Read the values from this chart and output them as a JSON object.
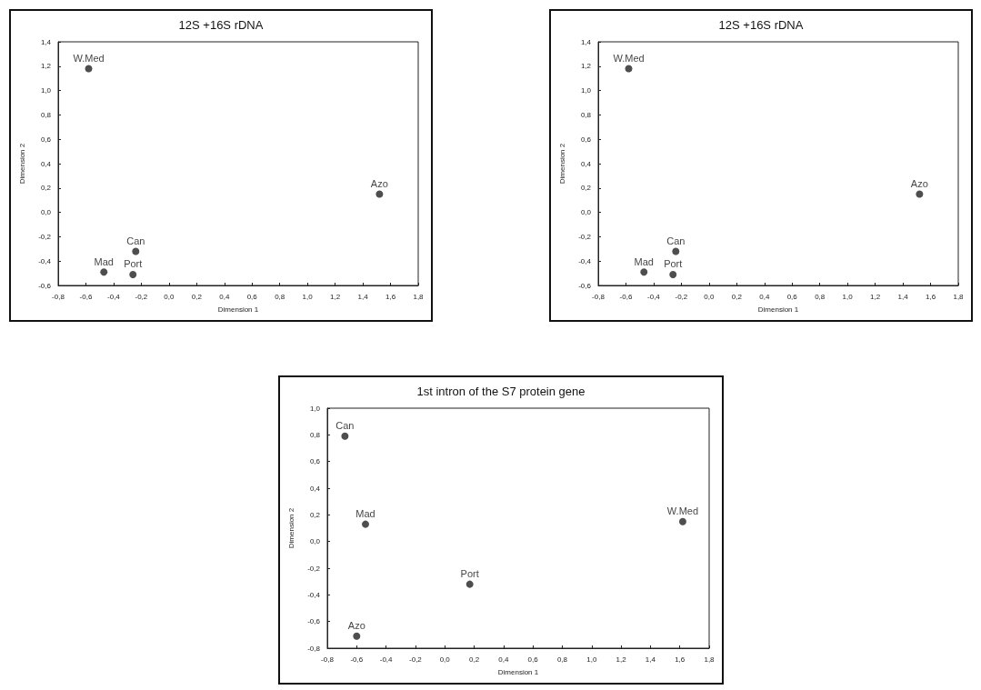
{
  "chart_data": [
    {
      "type": "scatter",
      "title": "12S +16S rDNA",
      "xlabel": "Dimension 1",
      "ylabel": "Dimension 2",
      "marker": "circle",
      "legend": false,
      "grid": false,
      "xlim": [
        -0.8,
        1.8
      ],
      "xticks": [
        {
          "value": -0.8,
          "label": "-0,8"
        },
        {
          "value": -0.6,
          "label": "-0,6"
        },
        {
          "value": -0.4,
          "label": "-0,4"
        },
        {
          "value": -0.2,
          "label": "-0,2"
        },
        {
          "value": 0,
          "label": "0,0"
        },
        {
          "value": 0.2,
          "label": "0,2"
        },
        {
          "value": 0.4,
          "label": "0,4"
        },
        {
          "value": 0.6,
          "label": "0,6"
        },
        {
          "value": 0.8,
          "label": "0,8"
        },
        {
          "value": 1,
          "label": "1,0"
        },
        {
          "value": 1.2,
          "label": "1,2"
        },
        {
          "value": 1.4,
          "label": "1,4"
        },
        {
          "value": 1.6,
          "label": "1,6"
        },
        {
          "value": 1.8,
          "label": "1,8"
        }
      ],
      "ylim": [
        -0.6,
        1.4
      ],
      "yticks": [
        {
          "value": -0.6,
          "label": "-0,6"
        },
        {
          "value": -0.4,
          "label": "-0,4"
        },
        {
          "value": -0.2,
          "label": "-0,2"
        },
        {
          "value": 0,
          "label": "0,0"
        },
        {
          "value": 0.2,
          "label": "0,2"
        },
        {
          "value": 0.4,
          "label": "0,4"
        },
        {
          "value": 0.6,
          "label": "0,6"
        },
        {
          "value": 0.8,
          "label": "0,8"
        },
        {
          "value": 1,
          "label": "1,0"
        },
        {
          "value": 1.2,
          "label": "1,2"
        },
        {
          "value": 1.4,
          "label": "1,4"
        }
      ],
      "series": [
        {
          "name": "W.Med",
          "color": "#222222",
          "x": [
            -0.58
          ],
          "values": [
            1.18
          ]
        },
        {
          "name": "Azo",
          "color": "#222222",
          "x": [
            1.52
          ],
          "values": [
            0.15
          ]
        },
        {
          "name": "Can",
          "color": "#222222",
          "x": [
            -0.24
          ],
          "values": [
            -0.32
          ]
        },
        {
          "name": "Mad",
          "color": "#222222",
          "x": [
            -0.47
          ],
          "values": [
            -0.49
          ]
        },
        {
          "name": "Port",
          "color": "#222222",
          "x": [
            -0.26
          ],
          "values": [
            -0.51
          ]
        }
      ]
    },
    {
      "type": "scatter",
      "title": "12S +16S rDNA",
      "xlabel": "Dimension 1",
      "ylabel": "Dimension 2",
      "marker": "circle",
      "legend": false,
      "grid": false,
      "xlim": [
        -0.8,
        1.8
      ],
      "xticks": [
        {
          "value": -0.8,
          "label": "-0,8"
        },
        {
          "value": -0.6,
          "label": "-0,6"
        },
        {
          "value": -0.4,
          "label": "-0,4"
        },
        {
          "value": -0.2,
          "label": "-0,2"
        },
        {
          "value": 0,
          "label": "0,0"
        },
        {
          "value": 0.2,
          "label": "0,2"
        },
        {
          "value": 0.4,
          "label": "0,4"
        },
        {
          "value": 0.6,
          "label": "0,6"
        },
        {
          "value": 0.8,
          "label": "0,8"
        },
        {
          "value": 1,
          "label": "1,0"
        },
        {
          "value": 1.2,
          "label": "1,2"
        },
        {
          "value": 1.4,
          "label": "1,4"
        },
        {
          "value": 1.6,
          "label": "1,6"
        },
        {
          "value": 1.8,
          "label": "1,8"
        }
      ],
      "ylim": [
        -0.6,
        1.4
      ],
      "yticks": [
        {
          "value": -0.6,
          "label": "-0,6"
        },
        {
          "value": -0.4,
          "label": "-0,4"
        },
        {
          "value": -0.2,
          "label": "-0,2"
        },
        {
          "value": 0,
          "label": "0,0"
        },
        {
          "value": 0.2,
          "label": "0,2"
        },
        {
          "value": 0.4,
          "label": "0,4"
        },
        {
          "value": 0.6,
          "label": "0,6"
        },
        {
          "value": 0.8,
          "label": "0,8"
        },
        {
          "value": 1,
          "label": "1,0"
        },
        {
          "value": 1.2,
          "label": "1,2"
        },
        {
          "value": 1.4,
          "label": "1,4"
        }
      ],
      "series": [
        {
          "name": "W.Med",
          "color": "#222222",
          "x": [
            -0.58
          ],
          "values": [
            1.18
          ]
        },
        {
          "name": "Azo",
          "color": "#222222",
          "x": [
            1.52
          ],
          "values": [
            0.15
          ]
        },
        {
          "name": "Can",
          "color": "#222222",
          "x": [
            -0.24
          ],
          "values": [
            -0.32
          ]
        },
        {
          "name": "Mad",
          "color": "#222222",
          "x": [
            -0.47
          ],
          "values": [
            -0.49
          ]
        },
        {
          "name": "Port",
          "color": "#222222",
          "x": [
            -0.26
          ],
          "values": [
            -0.51
          ]
        }
      ]
    },
    {
      "type": "scatter",
      "title": "1st intron of the S7 protein gene",
      "xlabel": "Dimension 1",
      "ylabel": "Dimension 2",
      "marker": "circle",
      "legend": false,
      "grid": false,
      "xlim": [
        -0.8,
        1.8
      ],
      "xticks": [
        {
          "value": -0.8,
          "label": "-0,8"
        },
        {
          "value": -0.6,
          "label": "-0,6"
        },
        {
          "value": -0.4,
          "label": "-0,4"
        },
        {
          "value": -0.2,
          "label": "-0,2"
        },
        {
          "value": 0,
          "label": "0,0"
        },
        {
          "value": 0.2,
          "label": "0,2"
        },
        {
          "value": 0.4,
          "label": "0,4"
        },
        {
          "value": 0.6,
          "label": "0,6"
        },
        {
          "value": 0.8,
          "label": "0,8"
        },
        {
          "value": 1,
          "label": "1,0"
        },
        {
          "value": 1.2,
          "label": "1,2"
        },
        {
          "value": 1.4,
          "label": "1,4"
        },
        {
          "value": 1.6,
          "label": "1,6"
        },
        {
          "value": 1.8,
          "label": "1,8"
        }
      ],
      "ylim": [
        -0.8,
        1.0
      ],
      "yticks": [
        {
          "value": -0.8,
          "label": "-0,8"
        },
        {
          "value": -0.6,
          "label": "-0,6"
        },
        {
          "value": -0.4,
          "label": "-0,4"
        },
        {
          "value": -0.2,
          "label": "-0,2"
        },
        {
          "value": 0,
          "label": "0,0"
        },
        {
          "value": 0.2,
          "label": "0,2"
        },
        {
          "value": 0.4,
          "label": "0,4"
        },
        {
          "value": 0.6,
          "label": "0,6"
        },
        {
          "value": 0.8,
          "label": "0,8"
        },
        {
          "value": 1,
          "label": "1,0"
        }
      ],
      "series": [
        {
          "name": "Can",
          "color": "#222222",
          "x": [
            -0.68
          ],
          "values": [
            0.79
          ]
        },
        {
          "name": "Mad",
          "color": "#222222",
          "x": [
            -0.54
          ],
          "values": [
            0.13
          ]
        },
        {
          "name": "Azo",
          "color": "#222222",
          "x": [
            -0.6
          ],
          "values": [
            -0.71
          ]
        },
        {
          "name": "Port",
          "color": "#222222",
          "x": [
            0.17
          ],
          "values": [
            -0.32
          ]
        },
        {
          "name": "W.Med",
          "color": "#222222",
          "x": [
            1.62
          ],
          "values": [
            0.15
          ]
        }
      ]
    }
  ]
}
